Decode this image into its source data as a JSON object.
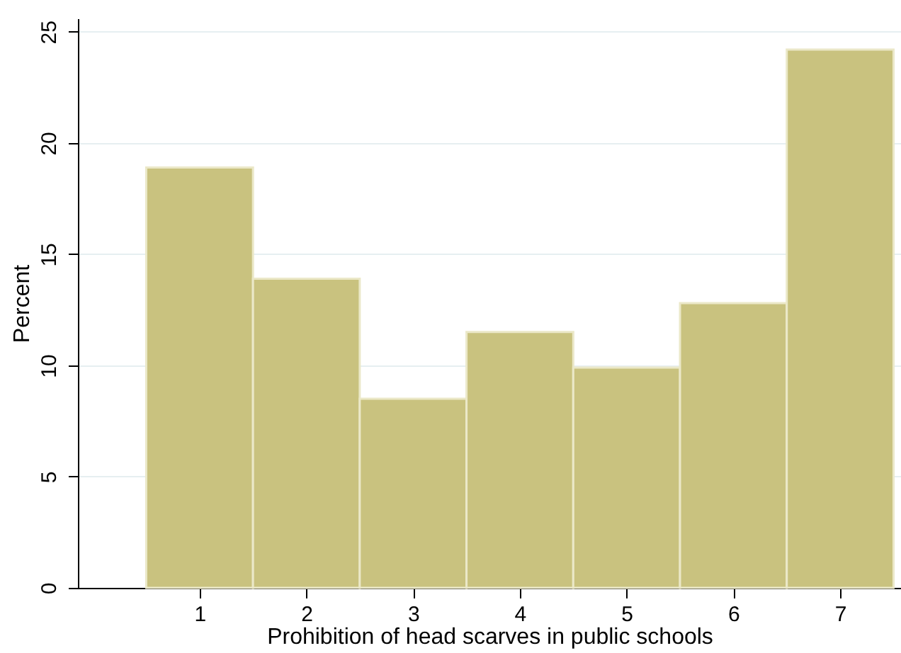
{
  "chart_data": {
    "type": "histogram",
    "xlabel": "Prohibition of head scarves in public schools",
    "ylabel": "Percent",
    "bins": [
      0.5,
      1.5,
      2.5,
      3.5,
      4.5,
      5.5,
      6.5,
      7.5
    ],
    "values": [
      18.9,
      13.9,
      8.5,
      11.5,
      9.9,
      12.8,
      24.2
    ],
    "color": "#c9c27f",
    "xlim": [
      -0.14,
      7.57
    ],
    "xticks": [
      1,
      2,
      3,
      4,
      5,
      6,
      7
    ],
    "ylim": [
      0,
      25.6
    ],
    "yticks": [
      0,
      5,
      10,
      15,
      20,
      25
    ],
    "grid": "y"
  }
}
